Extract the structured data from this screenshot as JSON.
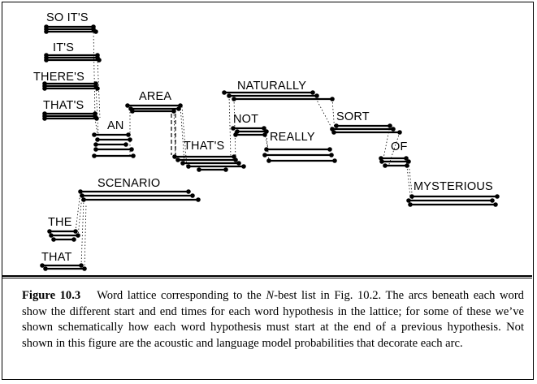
{
  "diagram": {
    "words": [
      {
        "id": "so-its",
        "label": "SO IT'S"
      },
      {
        "id": "its",
        "label": "IT'S"
      },
      {
        "id": "theres",
        "label": "THERE'S"
      },
      {
        "id": "thats-1",
        "label": "THAT'S"
      },
      {
        "id": "an",
        "label": "AN"
      },
      {
        "id": "area",
        "label": "AREA"
      },
      {
        "id": "thats-2",
        "label": "THAT'S"
      },
      {
        "id": "naturally",
        "label": "NATURALLY"
      },
      {
        "id": "not",
        "label": "NOT"
      },
      {
        "id": "really",
        "label": "REALLY"
      },
      {
        "id": "sort",
        "label": "SORT"
      },
      {
        "id": "of",
        "label": "OF"
      },
      {
        "id": "scenario",
        "label": "SCENARIO"
      },
      {
        "id": "mysterious",
        "label": "MYSTERIOUS"
      },
      {
        "id": "the",
        "label": "THE"
      },
      {
        "id": "that",
        "label": "THAT"
      }
    ]
  },
  "caption": {
    "label": "Figure 10.3",
    "text_before": "Word lattice corresponding to the ",
    "n_italic": "N",
    "text_after": "-best list in Fig. 10.2. The arcs beneath each word show the different start and end times for each word hypothesis in the lattice; for some of these we’ve shown schematically how each word hypothesis must start at the end of a previous hypothesis. Not shown in this figure are the acoustic and language model probabilities that decorate each arc."
  }
}
